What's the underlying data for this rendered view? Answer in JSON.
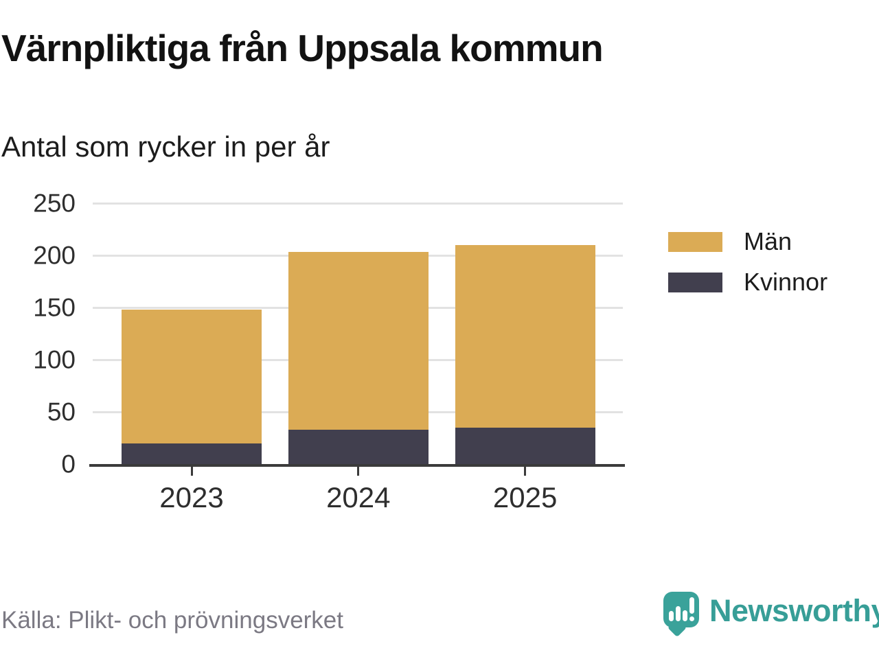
{
  "chart_data": {
    "type": "bar",
    "stacked": true,
    "title": "Värnpliktiga från Uppsala kommun",
    "subtitle": "Antal som rycker in per år",
    "categories": [
      "2023",
      "2024",
      "2025"
    ],
    "series": [
      {
        "name": "Kvinnor",
        "color": "#413F4E",
        "values": [
          20,
          33,
          35
        ]
      },
      {
        "name": "Män",
        "color": "#DBAB55",
        "values": [
          128,
          170,
          175
        ]
      }
    ],
    "totals": [
      148,
      203,
      210
    ],
    "stack_order": "bottom-to-top: Kvinnor, Män",
    "xlabel": "",
    "ylabel": "",
    "ylim": [
      0,
      250
    ],
    "yticks": [
      0,
      50,
      100,
      150,
      200,
      250
    ],
    "grid": "horizontal gridlines on",
    "legend": {
      "position": "right-of-plot",
      "order": [
        "Män",
        "Kvinnor"
      ]
    }
  },
  "footer": {
    "source": "Källa: Plikt- och prövningsverket",
    "brand": "Newsworthy"
  },
  "colors": {
    "men_bar": "#DBAB55",
    "women_bar": "#413F4E",
    "axis": "#3B3B3B",
    "gridline": "#E2E2E2",
    "brand_teal": "#3AA29A",
    "source_text": "#7B7983",
    "title_text": "#121212"
  }
}
